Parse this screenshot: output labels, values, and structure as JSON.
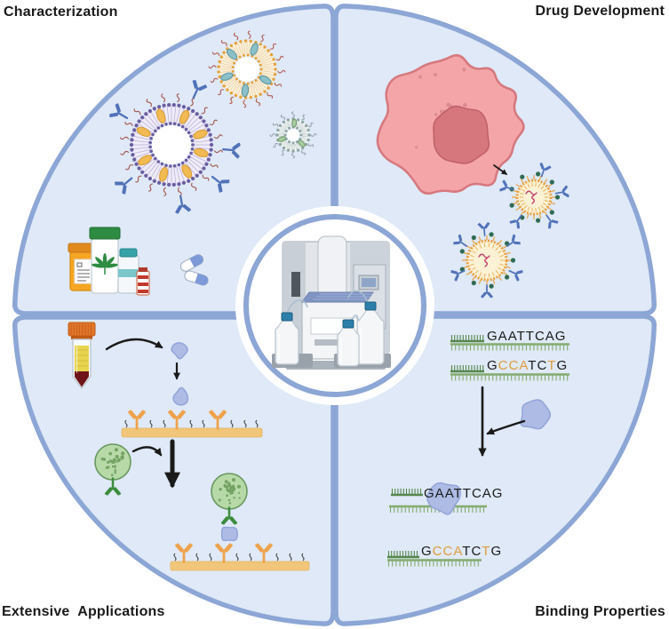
{
  "quadrants": {
    "top_left": {
      "label": "Characterization"
    },
    "top_right": {
      "label": "Drug Development"
    },
    "bottom_left": {
      "label": "Extensive  Applications"
    },
    "bottom_right": {
      "label": "Binding Properties"
    }
  },
  "center": {
    "icon": "spr-biosensor-instrument"
  },
  "sequences": {
    "match": {
      "text": "GAATTCAG",
      "orange_positions": []
    },
    "mismatch": {
      "text": "GCCATCTG",
      "orange_positions": [
        1,
        2,
        3,
        6
      ]
    }
  },
  "icons": {
    "top_left": [
      "antibody-conjugated-liposome",
      "pegylated-liposome",
      "small-liposome",
      "pill-bottle",
      "cannabis-extract-bottle",
      "vaccine-vial",
      "ampoule",
      "capsule-pills"
    ],
    "top_right": [
      "tumor-cell",
      "antibody-coated-virus",
      "antibody-coated-virus"
    ],
    "bottom_left": [
      "blood-sample-tube",
      "protein-analyte",
      "antibody-sensor-surface",
      "virus-like-particle",
      "captured-virus-complex"
    ],
    "bottom_right": [
      "dna-probe-strand",
      "protein-blob",
      "dna-protein-complex"
    ]
  },
  "colors": {
    "quadrant_fill": "#DFE9F7",
    "rim_blue": "#8CA6D5",
    "label_text": "#1A1A1A",
    "seq_black": "#1A1A1A",
    "seq_orange": "#E09B3D",
    "dna_green_dark": "#55874C",
    "dna_green_light": "#84AB70",
    "protein_blue": "#ADBBE5",
    "antibody_blue": "#5072B8",
    "antibody_orange": "#EFA24B",
    "antibody_green": "#3C8C3F",
    "sensor_gold": "#F1C67A",
    "cell_pink": "#F3A5A8",
    "cell_nucleus": "#D6777E",
    "virus_orange": "#E9A13E",
    "virus_knob_green": "#2F6B54",
    "sphere_green": "#B7D9A8",
    "liposome_purple": "#6A5EA1",
    "liposome_orange": "#E5A23B",
    "tube_cap_orange": "#E2762A",
    "serum_yellow": "#E8D44F",
    "blood_red": "#6E1418",
    "bottle_cap_teal": "#2C7FA8"
  }
}
